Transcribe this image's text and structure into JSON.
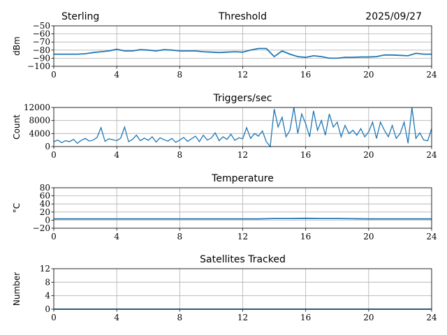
{
  "header": {
    "station": "Sterling",
    "date": "2025/09/27"
  },
  "colors": {
    "line": "#1f77b4",
    "grid": "#b0b0b0"
  },
  "chart_data": [
    {
      "type": "line",
      "title": "Threshold",
      "ylabel": "dBm",
      "xlabel": "",
      "xlim": [
        0,
        24
      ],
      "ylim": [
        -100,
        -50
      ],
      "xticks": [
        "0",
        "4",
        "8",
        "12",
        "16",
        "20",
        "24"
      ],
      "yticks": [
        "−50",
        "−60",
        "−70",
        "−80",
        "−90",
        "−100"
      ],
      "ytick_values": [
        -50,
        -60,
        -70,
        -80,
        -90,
        -100
      ],
      "grid": true,
      "values": [
        -85,
        -85,
        -85,
        -85,
        -84.5,
        -83,
        -82,
        -81,
        -79,
        -81,
        -81,
        -79.5,
        -80,
        -81,
        -79.5,
        -80,
        -81,
        -81,
        -81,
        -82,
        -82.5,
        -83,
        -82.5,
        -82,
        -82.5,
        -80,
        -78,
        -78,
        -88,
        -81,
        -85,
        -88,
        -89,
        -87,
        -88,
        -90,
        -90,
        -89,
        -89,
        -88.5,
        -88.5,
        -88,
        -86,
        -86,
        -86.5,
        -87,
        -84,
        -85,
        -85
      ]
    },
    {
      "type": "line",
      "title": "Triggers/sec",
      "ylabel": "Count",
      "xlabel": "",
      "xlim": [
        0,
        24
      ],
      "ylim": [
        0,
        12000
      ],
      "xticks": [
        "0",
        "4",
        "8",
        "12",
        "16",
        "20",
        "24"
      ],
      "yticks": [
        "12000",
        "8000",
        "4000",
        "0"
      ],
      "ytick_values": [
        12000,
        8000,
        4000,
        0
      ],
      "grid": true,
      "values": [
        1500,
        2000,
        1200,
        1800,
        1500,
        2200,
        1000,
        1900,
        2500,
        1700,
        2000,
        2800,
        5800,
        1600,
        2400,
        2100,
        1800,
        2600,
        6000,
        1500,
        2200,
        3500,
        1800,
        2600,
        1900,
        3000,
        1400,
        2700,
        2100,
        1700,
        2500,
        1300,
        2000,
        2800,
        1600,
        2400,
        3200,
        1500,
        3500,
        2000,
        2600,
        4200,
        1800,
        3000,
        2200,
        3800,
        1900,
        2700,
        2400,
        5800,
        2500,
        4000,
        3200,
        4800,
        1500,
        0,
        11500,
        6000,
        9000,
        3000,
        5000,
        12000,
        4000,
        10000,
        7000,
        3000,
        11000,
        5000,
        8000,
        3500,
        10000,
        6000,
        7500,
        3000,
        6500,
        4000,
        5000,
        3500,
        5500,
        3000,
        4500,
        7500,
        2500,
        7500,
        5000,
        3000,
        6500,
        2500,
        4000,
        7500,
        1000,
        12000,
        2500,
        4200,
        2000,
        1800,
        5500
      ]
    },
    {
      "type": "line",
      "title": "Temperature",
      "ylabel": "°C",
      "xlabel": "",
      "xlim": [
        0,
        24
      ],
      "ylim": [
        -20,
        80
      ],
      "xticks": [
        "0",
        "4",
        "8",
        "12",
        "16",
        "20",
        "24"
      ],
      "yticks": [
        "80",
        "60",
        "40",
        "20",
        "0",
        "−20"
      ],
      "ytick_values": [
        80,
        60,
        40,
        20,
        0,
        -20
      ],
      "grid": true,
      "values": [
        3,
        3,
        3,
        3,
        3,
        3,
        3,
        3,
        3,
        3,
        3,
        3,
        3,
        3,
        4,
        4,
        4.5,
        4,
        4,
        3.5,
        3,
        3,
        3,
        3,
        3
      ]
    },
    {
      "type": "line",
      "title": "Satellites Tracked",
      "ylabel": "Number",
      "xlabel": "",
      "xlim": [
        0,
        24
      ],
      "ylim": [
        0,
        12
      ],
      "xticks": [
        "0",
        "4",
        "8",
        "12",
        "16",
        "20",
        "24"
      ],
      "yticks": [
        "12",
        "8",
        "4",
        "0"
      ],
      "ytick_values": [
        12,
        8,
        4,
        0
      ],
      "grid": true,
      "values": [
        0,
        0
      ]
    }
  ]
}
